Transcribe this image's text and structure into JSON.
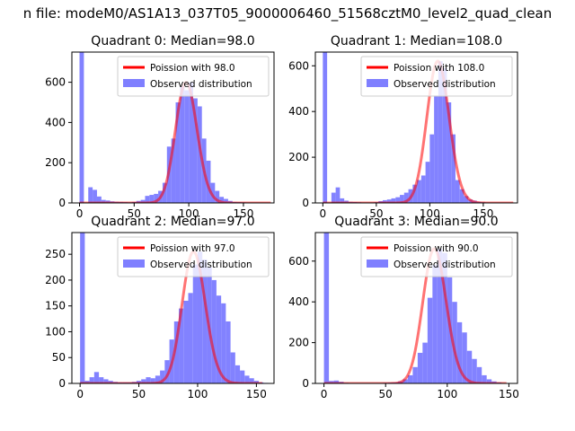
{
  "suptitle": "n file: modeM0/AS1A13_037T05_9000006460_51568cztM0_level2_quad_clean",
  "colors": {
    "hist": "#7f7fff",
    "poisson": "#ff0000",
    "axis": "#000000"
  },
  "chart_data": [
    {
      "type": "bar",
      "title": "Quadrant 0: Median=98.0",
      "legend": {
        "placement": "top-right",
        "entries": [
          "Poission with 98.0",
          "Observed distribution"
        ]
      },
      "xlim": [
        -7,
        178
      ],
      "ylim": [
        0,
        750
      ],
      "xticks": [
        0,
        50,
        100,
        150
      ],
      "xtick_labels": [
        "0",
        "50",
        "100",
        "150"
      ],
      "yticks": [
        0,
        200,
        400,
        600
      ],
      "ytick_labels": [
        "0",
        "200",
        "400",
        "600"
      ],
      "hist": {
        "bin_width": 4,
        "x": [
          0,
          4,
          8,
          12,
          16,
          20,
          24,
          28,
          32,
          36,
          40,
          44,
          48,
          52,
          56,
          60,
          64,
          68,
          72,
          76,
          80,
          84,
          88,
          92,
          96,
          100,
          104,
          108,
          112,
          116,
          120,
          124,
          128,
          132,
          136,
          140,
          144,
          148,
          152,
          156,
          160,
          164,
          168
        ],
        "values": [
          750,
          0,
          78,
          65,
          32,
          15,
          12,
          8,
          6,
          5,
          4,
          3,
          5,
          10,
          15,
          35,
          40,
          45,
          60,
          100,
          280,
          320,
          500,
          580,
          560,
          600,
          520,
          480,
          320,
          210,
          100,
          60,
          30,
          20,
          10,
          5,
          4,
          3,
          2,
          1,
          0,
          0,
          0
        ]
      },
      "poisson": {
        "lambda": 98.0,
        "x_range": [
          0,
          175
        ]
      }
    },
    {
      "type": "bar",
      "title": "Quadrant 1: Median=108.0",
      "legend": {
        "placement": "top-right",
        "entries": [
          "Poission with 108.0",
          "Observed distribution"
        ]
      },
      "xlim": [
        -7,
        182
      ],
      "ylim": [
        0,
        660
      ],
      "xticks": [
        0,
        50,
        100,
        150
      ],
      "xtick_labels": [
        "0",
        "50",
        "100",
        "150"
      ],
      "yticks": [
        0,
        200,
        400,
        600
      ],
      "ytick_labels": [
        "0",
        "200",
        "400",
        "600"
      ],
      "hist": {
        "bin_width": 4,
        "x": [
          0,
          4,
          8,
          12,
          16,
          20,
          24,
          28,
          32,
          36,
          40,
          44,
          48,
          52,
          56,
          60,
          64,
          68,
          72,
          76,
          80,
          84,
          88,
          92,
          96,
          100,
          104,
          108,
          112,
          116,
          120,
          124,
          128,
          132,
          136,
          140,
          144,
          148,
          152,
          156,
          160,
          164,
          168,
          172
        ],
        "values": [
          660,
          0,
          45,
          68,
          20,
          10,
          5,
          4,
          3,
          2,
          2,
          2,
          3,
          8,
          12,
          15,
          20,
          25,
          35,
          45,
          60,
          80,
          100,
          120,
          180,
          300,
          470,
          620,
          590,
          440,
          300,
          100,
          60,
          30,
          15,
          10,
          5,
          3,
          2,
          1,
          0,
          0,
          0,
          0
        ]
      },
      "poisson": {
        "lambda": 108.0,
        "x_range": [
          0,
          178
        ]
      }
    },
    {
      "type": "bar",
      "title": "Quadrant 2: Median=97.0",
      "legend": {
        "placement": "top-right",
        "entries": [
          "Poission with 97.0",
          "Observed distribution"
        ]
      },
      "xlim": [
        -7,
        165
      ],
      "ylim": [
        0,
        292
      ],
      "xticks": [
        0,
        50,
        100,
        150
      ],
      "xtick_labels": [
        "0",
        "50",
        "100",
        "150"
      ],
      "yticks": [
        0,
        50,
        100,
        150,
        200,
        250
      ],
      "ytick_labels": [
        "0",
        "50",
        "100",
        "150",
        "200",
        "250"
      ],
      "hist": {
        "bin_width": 4,
        "x": [
          0,
          4,
          8,
          12,
          16,
          20,
          24,
          28,
          32,
          36,
          40,
          44,
          48,
          52,
          56,
          60,
          64,
          68,
          72,
          76,
          80,
          84,
          88,
          92,
          96,
          100,
          104,
          108,
          112,
          116,
          120,
          124,
          128,
          132,
          136,
          140,
          144,
          148,
          152,
          156
        ],
        "values": [
          292,
          5,
          12,
          22,
          12,
          8,
          5,
          3,
          2,
          2,
          2,
          3,
          5,
          8,
          12,
          10,
          15,
          25,
          45,
          85,
          120,
          145,
          160,
          175,
          230,
          255,
          240,
          225,
          200,
          170,
          155,
          120,
          60,
          35,
          25,
          15,
          10,
          5,
          2,
          1
        ]
      },
      "poisson": {
        "lambda": 97.0,
        "x_range": [
          0,
          155
        ]
      }
    },
    {
      "type": "bar",
      "title": "Quadrant 3: Median=90.0",
      "legend": {
        "placement": "top-right",
        "entries": [
          "Poission with 90.0",
          "Observed distribution"
        ]
      },
      "xlim": [
        -7,
        157
      ],
      "ylim": [
        0,
        740
      ],
      "xticks": [
        0,
        50,
        100,
        150
      ],
      "xtick_labels": [
        "0",
        "50",
        "100",
        "150"
      ],
      "yticks": [
        0,
        200,
        400,
        600
      ],
      "ytick_labels": [
        "0",
        "200",
        "400",
        "600"
      ],
      "hist": {
        "bin_width": 4,
        "x": [
          0,
          4,
          8,
          12,
          16,
          20,
          24,
          28,
          32,
          36,
          40,
          44,
          48,
          52,
          56,
          60,
          64,
          68,
          72,
          76,
          80,
          84,
          88,
          92,
          96,
          100,
          104,
          108,
          112,
          116,
          120,
          124,
          128,
          132,
          136,
          140,
          144,
          148
        ],
        "values": [
          740,
          12,
          14,
          8,
          3,
          2,
          2,
          2,
          2,
          2,
          2,
          2,
          3,
          4,
          5,
          10,
          20,
          40,
          80,
          150,
          200,
          420,
          580,
          660,
          640,
          520,
          400,
          300,
          250,
          160,
          120,
          80,
          40,
          20,
          10,
          5,
          2,
          1
        ]
      },
      "poisson": {
        "lambda": 90.0,
        "x_range": [
          0,
          148
        ]
      }
    }
  ]
}
